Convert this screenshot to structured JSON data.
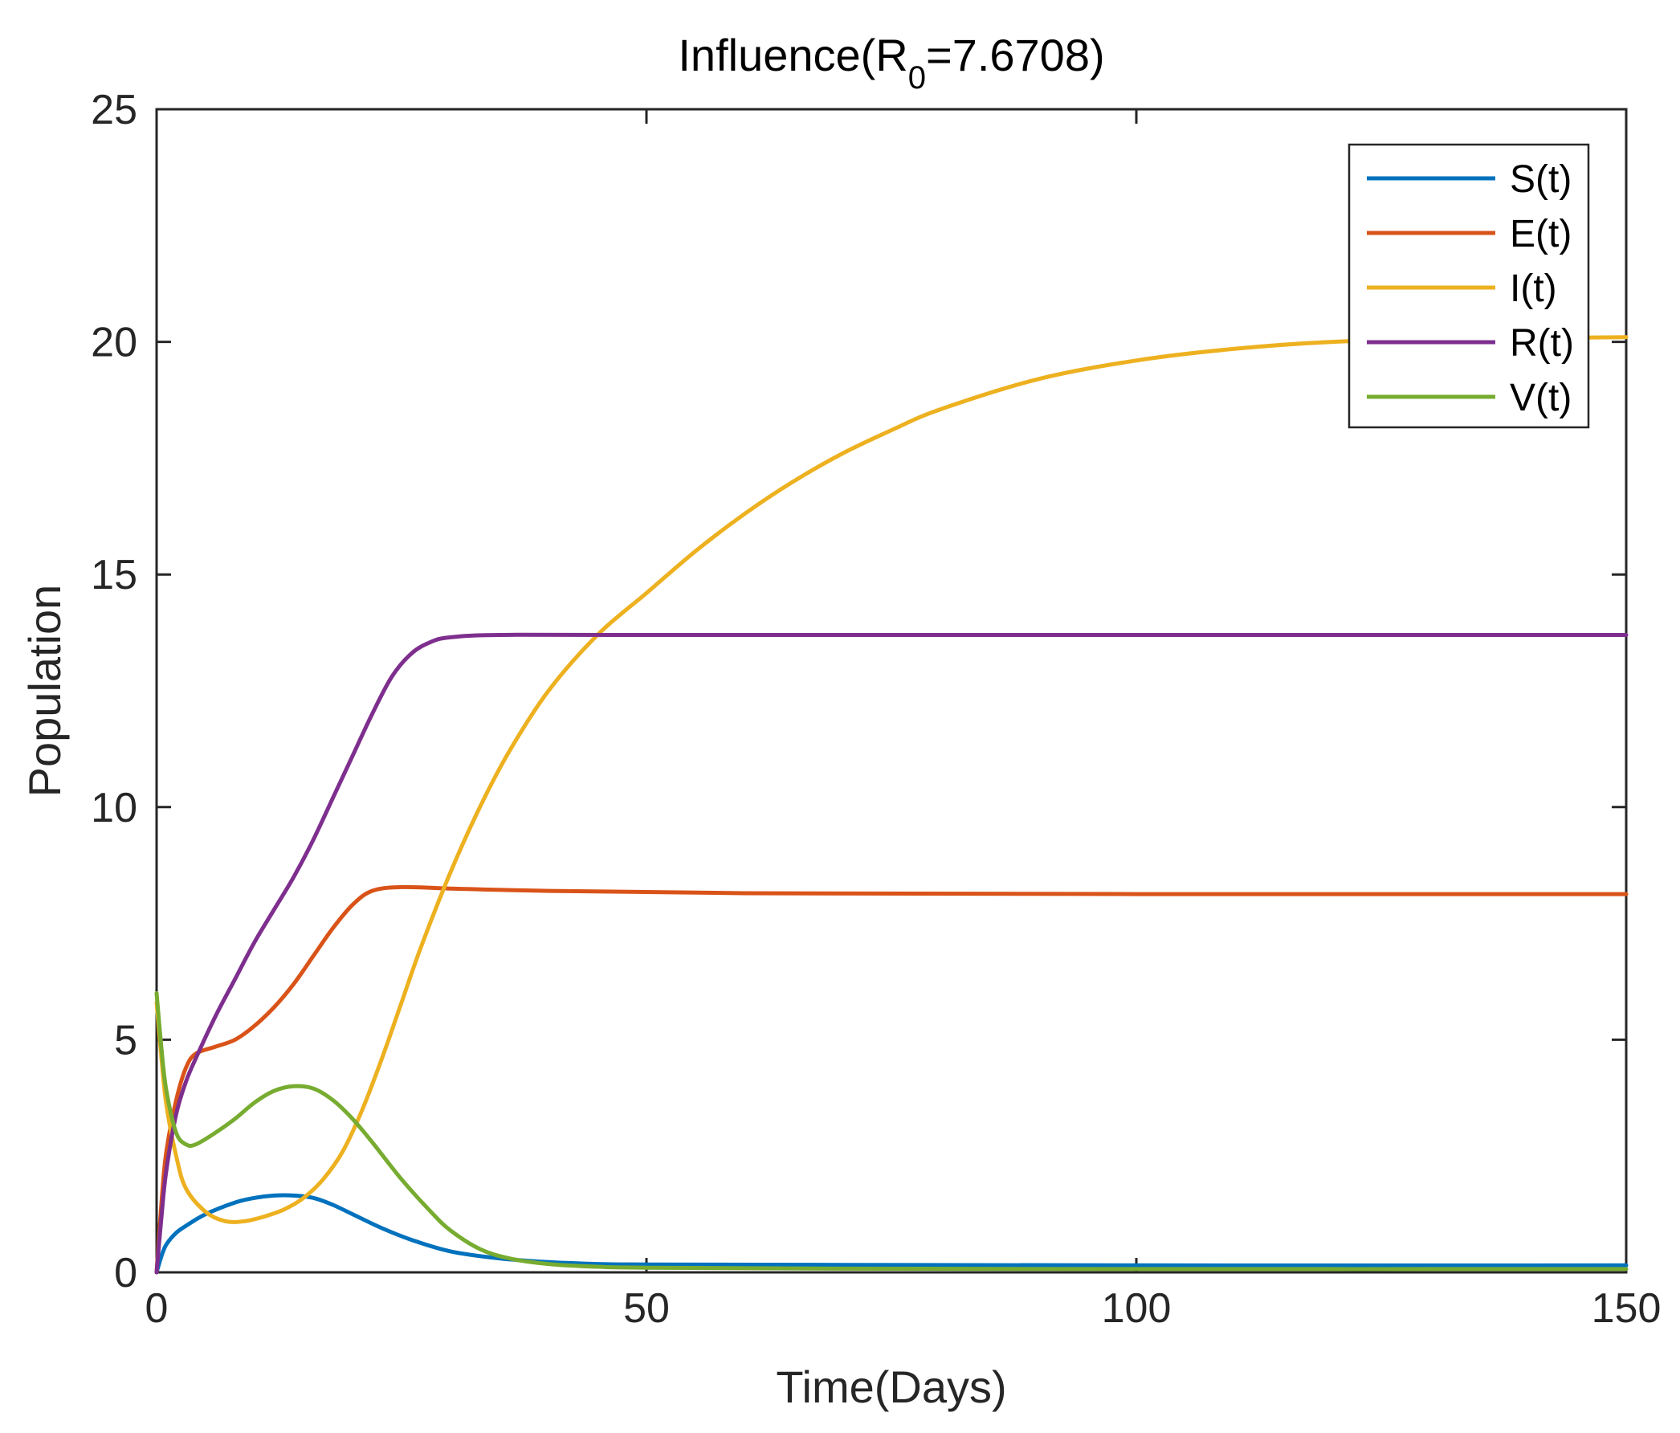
{
  "chart_data": {
    "type": "line",
    "title": {
      "prefix": "Influence(R",
      "subscript": "0",
      "suffix": "=7.6708)"
    },
    "xlabel": "Time(Days)",
    "ylabel": "Population",
    "xlim": [
      0,
      150
    ],
    "ylim": [
      0,
      25
    ],
    "xticks": [
      0,
      50,
      100,
      150
    ],
    "yticks": [
      0,
      5,
      10,
      15,
      20,
      25
    ],
    "xtick_labels": [
      "0",
      "50",
      "100",
      "150"
    ],
    "ytick_labels": [
      "0",
      "5",
      "10",
      "15",
      "20",
      "25"
    ],
    "legend_position": "top-right",
    "series": [
      {
        "name": "S(t)",
        "color": "#0072BD",
        "points": [
          [
            0,
            0
          ],
          [
            0.5,
            0.35
          ],
          [
            1,
            0.6
          ],
          [
            2,
            0.85
          ],
          [
            3,
            1.0
          ],
          [
            5,
            1.25
          ],
          [
            8,
            1.5
          ],
          [
            10,
            1.6
          ],
          [
            12,
            1.65
          ],
          [
            14,
            1.65
          ],
          [
            16,
            1.6
          ],
          [
            18,
            1.45
          ],
          [
            20,
            1.25
          ],
          [
            23,
            0.95
          ],
          [
            26,
            0.7
          ],
          [
            30,
            0.45
          ],
          [
            35,
            0.3
          ],
          [
            40,
            0.22
          ],
          [
            45,
            0.18
          ],
          [
            50,
            0.17
          ],
          [
            70,
            0.16
          ],
          [
            100,
            0.15
          ],
          [
            150,
            0.15
          ]
        ]
      },
      {
        "name": "E(t)",
        "color": "#D95319",
        "points": [
          [
            0,
            0
          ],
          [
            0.5,
            1.5
          ],
          [
            1,
            2.6
          ],
          [
            2,
            3.7
          ],
          [
            3,
            4.4
          ],
          [
            4,
            4.7
          ],
          [
            6,
            4.85
          ],
          [
            8,
            5.0
          ],
          [
            10,
            5.3
          ],
          [
            12,
            5.7
          ],
          [
            14,
            6.2
          ],
          [
            16,
            6.8
          ],
          [
            18,
            7.4
          ],
          [
            20,
            7.9
          ],
          [
            22,
            8.2
          ],
          [
            25,
            8.28
          ],
          [
            30,
            8.25
          ],
          [
            40,
            8.2
          ],
          [
            60,
            8.15
          ],
          [
            100,
            8.13
          ],
          [
            150,
            8.13
          ]
        ]
      },
      {
        "name": "I(t)",
        "color": "#EDB120",
        "points": [
          [
            0,
            5.8
          ],
          [
            0.5,
            4.6
          ],
          [
            1,
            3.6
          ],
          [
            2,
            2.5
          ],
          [
            3,
            1.8
          ],
          [
            5,
            1.3
          ],
          [
            7,
            1.1
          ],
          [
            9,
            1.1
          ],
          [
            11,
            1.2
          ],
          [
            13,
            1.35
          ],
          [
            15,
            1.6
          ],
          [
            17,
            2.0
          ],
          [
            19,
            2.6
          ],
          [
            21,
            3.5
          ],
          [
            23,
            4.6
          ],
          [
            25,
            5.8
          ],
          [
            27,
            7.0
          ],
          [
            30,
            8.6
          ],
          [
            33,
            10.0
          ],
          [
            36,
            11.2
          ],
          [
            40,
            12.5
          ],
          [
            45,
            13.7
          ],
          [
            50,
            14.6
          ],
          [
            55,
            15.5
          ],
          [
            60,
            16.3
          ],
          [
            65,
            17.0
          ],
          [
            70,
            17.6
          ],
          [
            75,
            18.1
          ],
          [
            80,
            18.55
          ],
          [
            90,
            19.2
          ],
          [
            100,
            19.6
          ],
          [
            110,
            19.85
          ],
          [
            120,
            20.0
          ],
          [
            130,
            20.05
          ],
          [
            140,
            20.08
          ],
          [
            150,
            20.1
          ]
        ]
      },
      {
        "name": "R(t)",
        "color": "#7E2F8E",
        "points": [
          [
            0,
            0
          ],
          [
            0.5,
            1.2
          ],
          [
            1,
            2.2
          ],
          [
            2,
            3.4
          ],
          [
            3,
            4.1
          ],
          [
            4,
            4.6
          ],
          [
            6,
            5.5
          ],
          [
            8,
            6.3
          ],
          [
            10,
            7.1
          ],
          [
            12,
            7.8
          ],
          [
            14,
            8.5
          ],
          [
            16,
            9.3
          ],
          [
            18,
            10.2
          ],
          [
            20,
            11.1
          ],
          [
            22,
            12.0
          ],
          [
            24,
            12.8
          ],
          [
            26,
            13.3
          ],
          [
            28,
            13.55
          ],
          [
            30,
            13.65
          ],
          [
            35,
            13.7
          ],
          [
            50,
            13.7
          ],
          [
            100,
            13.7
          ],
          [
            150,
            13.7
          ]
        ]
      },
      {
        "name": "V(t)",
        "color": "#77AC30",
        "points": [
          [
            0,
            6.0
          ],
          [
            0.5,
            4.8
          ],
          [
            1,
            3.9
          ],
          [
            2,
            3.0
          ],
          [
            3,
            2.75
          ],
          [
            4,
            2.75
          ],
          [
            6,
            3.0
          ],
          [
            8,
            3.3
          ],
          [
            10,
            3.65
          ],
          [
            12,
            3.9
          ],
          [
            14,
            4.0
          ],
          [
            16,
            3.95
          ],
          [
            18,
            3.7
          ],
          [
            20,
            3.3
          ],
          [
            22,
            2.8
          ],
          [
            25,
            2.0
          ],
          [
            28,
            1.3
          ],
          [
            30,
            0.9
          ],
          [
            33,
            0.5
          ],
          [
            36,
            0.3
          ],
          [
            40,
            0.18
          ],
          [
            45,
            0.12
          ],
          [
            50,
            0.1
          ],
          [
            70,
            0.08
          ],
          [
            100,
            0.07
          ],
          [
            150,
            0.07
          ]
        ]
      }
    ]
  }
}
